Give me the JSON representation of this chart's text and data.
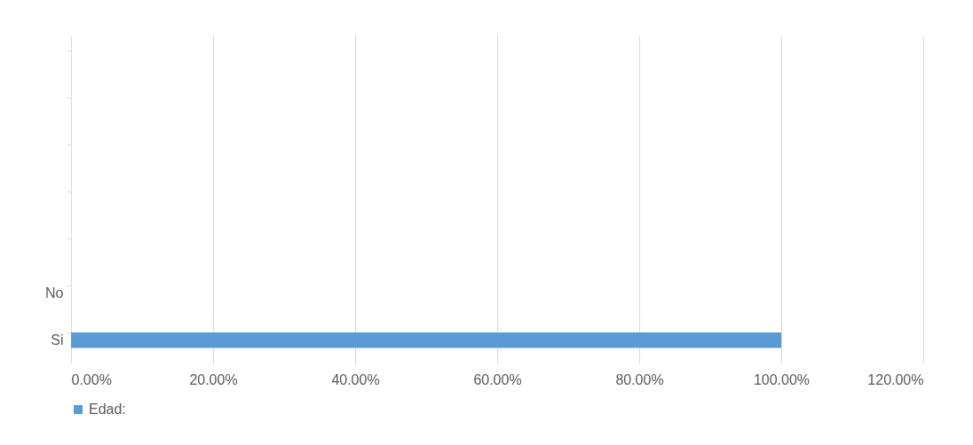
{
  "chart_data": {
    "type": "bar",
    "orientation": "horizontal",
    "categories": [
      null,
      null,
      null,
      null,
      null,
      "No",
      "Si"
    ],
    "series": [
      {
        "name": "Edad:",
        "color": "#5b9bd5",
        "values": [
          null,
          null,
          null,
          null,
          null,
          0,
          100
        ]
      }
    ],
    "xlim": [
      0,
      120
    ],
    "xticks": [
      {
        "value": 0,
        "label": "0.00%"
      },
      {
        "value": 20,
        "label": "20.00%"
      },
      {
        "value": 40,
        "label": "40.00%"
      },
      {
        "value": 60,
        "label": "60.00%"
      },
      {
        "value": 80,
        "label": "80.00%"
      },
      {
        "value": 100,
        "label": "100.00%"
      },
      {
        "value": 120,
        "label": "120.00%"
      }
    ],
    "grid": "x",
    "legend": "bottom"
  }
}
